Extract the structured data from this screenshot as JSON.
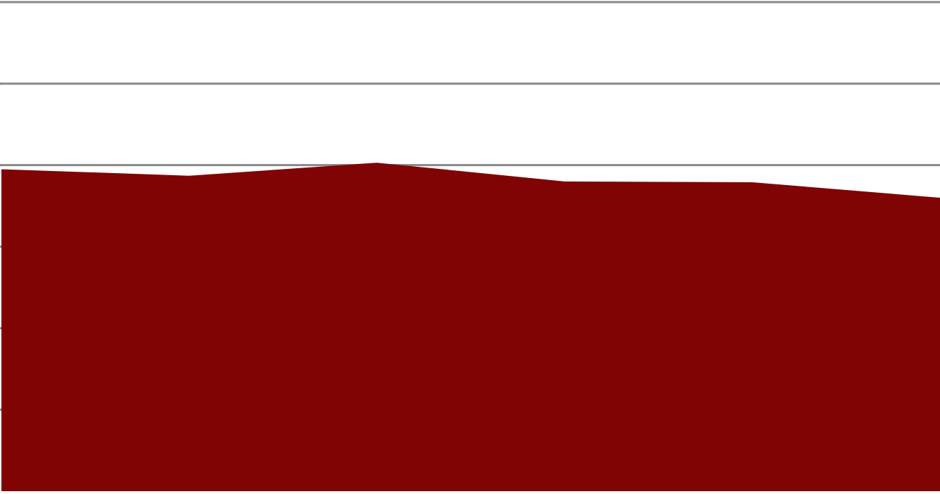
{
  "chart_data": {
    "type": "area",
    "x": [
      0,
      1,
      2,
      3,
      4,
      5
    ],
    "series": [
      {
        "values": [
          3.95,
          3.87,
          4.03,
          3.8,
          3.79,
          3.6
        ]
      }
    ],
    "ylim": [
      0,
      6
    ],
    "y_ticks": [
      0,
      1,
      2,
      3,
      4,
      5,
      6
    ],
    "xlabel": "",
    "ylabel": "",
    "title": "",
    "grid": true,
    "legend": "none",
    "colors": {
      "area_fill": "#800404",
      "gridline": "#888888",
      "background": "#ffffff"
    }
  }
}
